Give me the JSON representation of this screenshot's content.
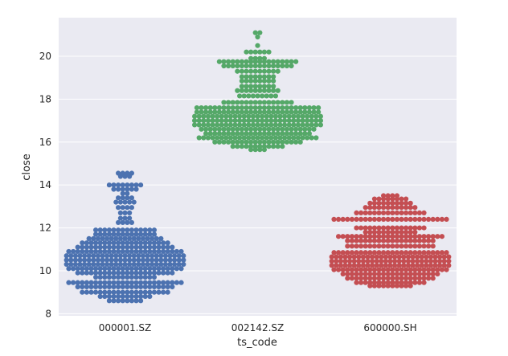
{
  "chart_data": {
    "type": "scatter",
    "subtype": "swarm",
    "title": "",
    "xlabel": "ts_code",
    "ylabel": "close",
    "ylim": [
      7.9,
      21.8
    ],
    "yticks": [
      8,
      10,
      12,
      14,
      16,
      18,
      20
    ],
    "grid": true,
    "background": "#eaeaf2",
    "categories": [
      "000001.SZ",
      "002142.SZ",
      "600000.SH"
    ],
    "series": [
      {
        "category": "000001.SZ",
        "color": "#4c72b0",
        "bands": [
          {
            "y": 14.55,
            "n": 4
          },
          {
            "y": 14.4,
            "n": 3
          },
          {
            "y": 14.0,
            "n": 8
          },
          {
            "y": 13.8,
            "n": 6
          },
          {
            "y": 13.6,
            "n": 2
          },
          {
            "y": 13.4,
            "n": 4
          },
          {
            "y": 13.2,
            "n": 5
          },
          {
            "y": 12.95,
            "n": 4
          },
          {
            "y": 12.7,
            "n": 3
          },
          {
            "y": 12.45,
            "n": 3
          },
          {
            "y": 12.25,
            "n": 4
          },
          {
            "y": 11.9,
            "n": 14
          },
          {
            "y": 11.7,
            "n": 14
          },
          {
            "y": 11.5,
            "n": 17
          },
          {
            "y": 11.3,
            "n": 20
          },
          {
            "y": 11.1,
            "n": 22
          },
          {
            "y": 10.9,
            "n": 26
          },
          {
            "y": 10.7,
            "n": 27
          },
          {
            "y": 10.5,
            "n": 27
          },
          {
            "y": 10.3,
            "n": 27
          },
          {
            "y": 10.1,
            "n": 26
          },
          {
            "y": 9.9,
            "n": 22
          },
          {
            "y": 9.7,
            "n": 14
          },
          {
            "y": 9.45,
            "n": 26
          },
          {
            "y": 9.25,
            "n": 22
          },
          {
            "y": 9.0,
            "n": 20
          },
          {
            "y": 8.8,
            "n": 12
          },
          {
            "y": 8.6,
            "n": 8
          }
        ]
      },
      {
        "category": "002142.SZ",
        "color": "#55a868",
        "bands": [
          {
            "y": 21.1,
            "n": 2
          },
          {
            "y": 20.9,
            "n": 1
          },
          {
            "y": 20.5,
            "n": 1
          },
          {
            "y": 20.2,
            "n": 6
          },
          {
            "y": 19.9,
            "n": 4
          },
          {
            "y": 19.75,
            "n": 18
          },
          {
            "y": 19.55,
            "n": 16
          },
          {
            "y": 19.3,
            "n": 10
          },
          {
            "y": 19.05,
            "n": 8
          },
          {
            "y": 18.85,
            "n": 8
          },
          {
            "y": 18.6,
            "n": 8
          },
          {
            "y": 18.4,
            "n": 10
          },
          {
            "y": 18.15,
            "n": 9
          },
          {
            "y": 17.85,
            "n": 16
          },
          {
            "y": 17.6,
            "n": 28
          },
          {
            "y": 17.4,
            "n": 28
          },
          {
            "y": 17.2,
            "n": 29
          },
          {
            "y": 17.0,
            "n": 29
          },
          {
            "y": 16.8,
            "n": 29
          },
          {
            "y": 16.6,
            "n": 26
          },
          {
            "y": 16.4,
            "n": 24
          },
          {
            "y": 16.2,
            "n": 27
          },
          {
            "y": 16.0,
            "n": 20
          },
          {
            "y": 15.8,
            "n": 12
          },
          {
            "y": 15.65,
            "n": 4
          }
        ]
      },
      {
        "category": "600000.SH",
        "color": "#c44e52",
        "bands": [
          {
            "y": 13.5,
            "n": 4
          },
          {
            "y": 13.35,
            "n": 8
          },
          {
            "y": 13.15,
            "n": 10
          },
          {
            "y": 12.95,
            "n": 12
          },
          {
            "y": 12.7,
            "n": 16
          },
          {
            "y": 12.4,
            "n": 26
          },
          {
            "y": 12.0,
            "n": 16
          },
          {
            "y": 11.8,
            "n": 12
          },
          {
            "y": 11.6,
            "n": 24
          },
          {
            "y": 11.4,
            "n": 20
          },
          {
            "y": 11.15,
            "n": 20
          },
          {
            "y": 10.85,
            "n": 26
          },
          {
            "y": 10.65,
            "n": 27
          },
          {
            "y": 10.45,
            "n": 27
          },
          {
            "y": 10.25,
            "n": 27
          },
          {
            "y": 10.05,
            "n": 26
          },
          {
            "y": 9.85,
            "n": 22
          },
          {
            "y": 9.65,
            "n": 20
          },
          {
            "y": 9.45,
            "n": 16
          },
          {
            "y": 9.3,
            "n": 10
          }
        ]
      }
    ]
  }
}
